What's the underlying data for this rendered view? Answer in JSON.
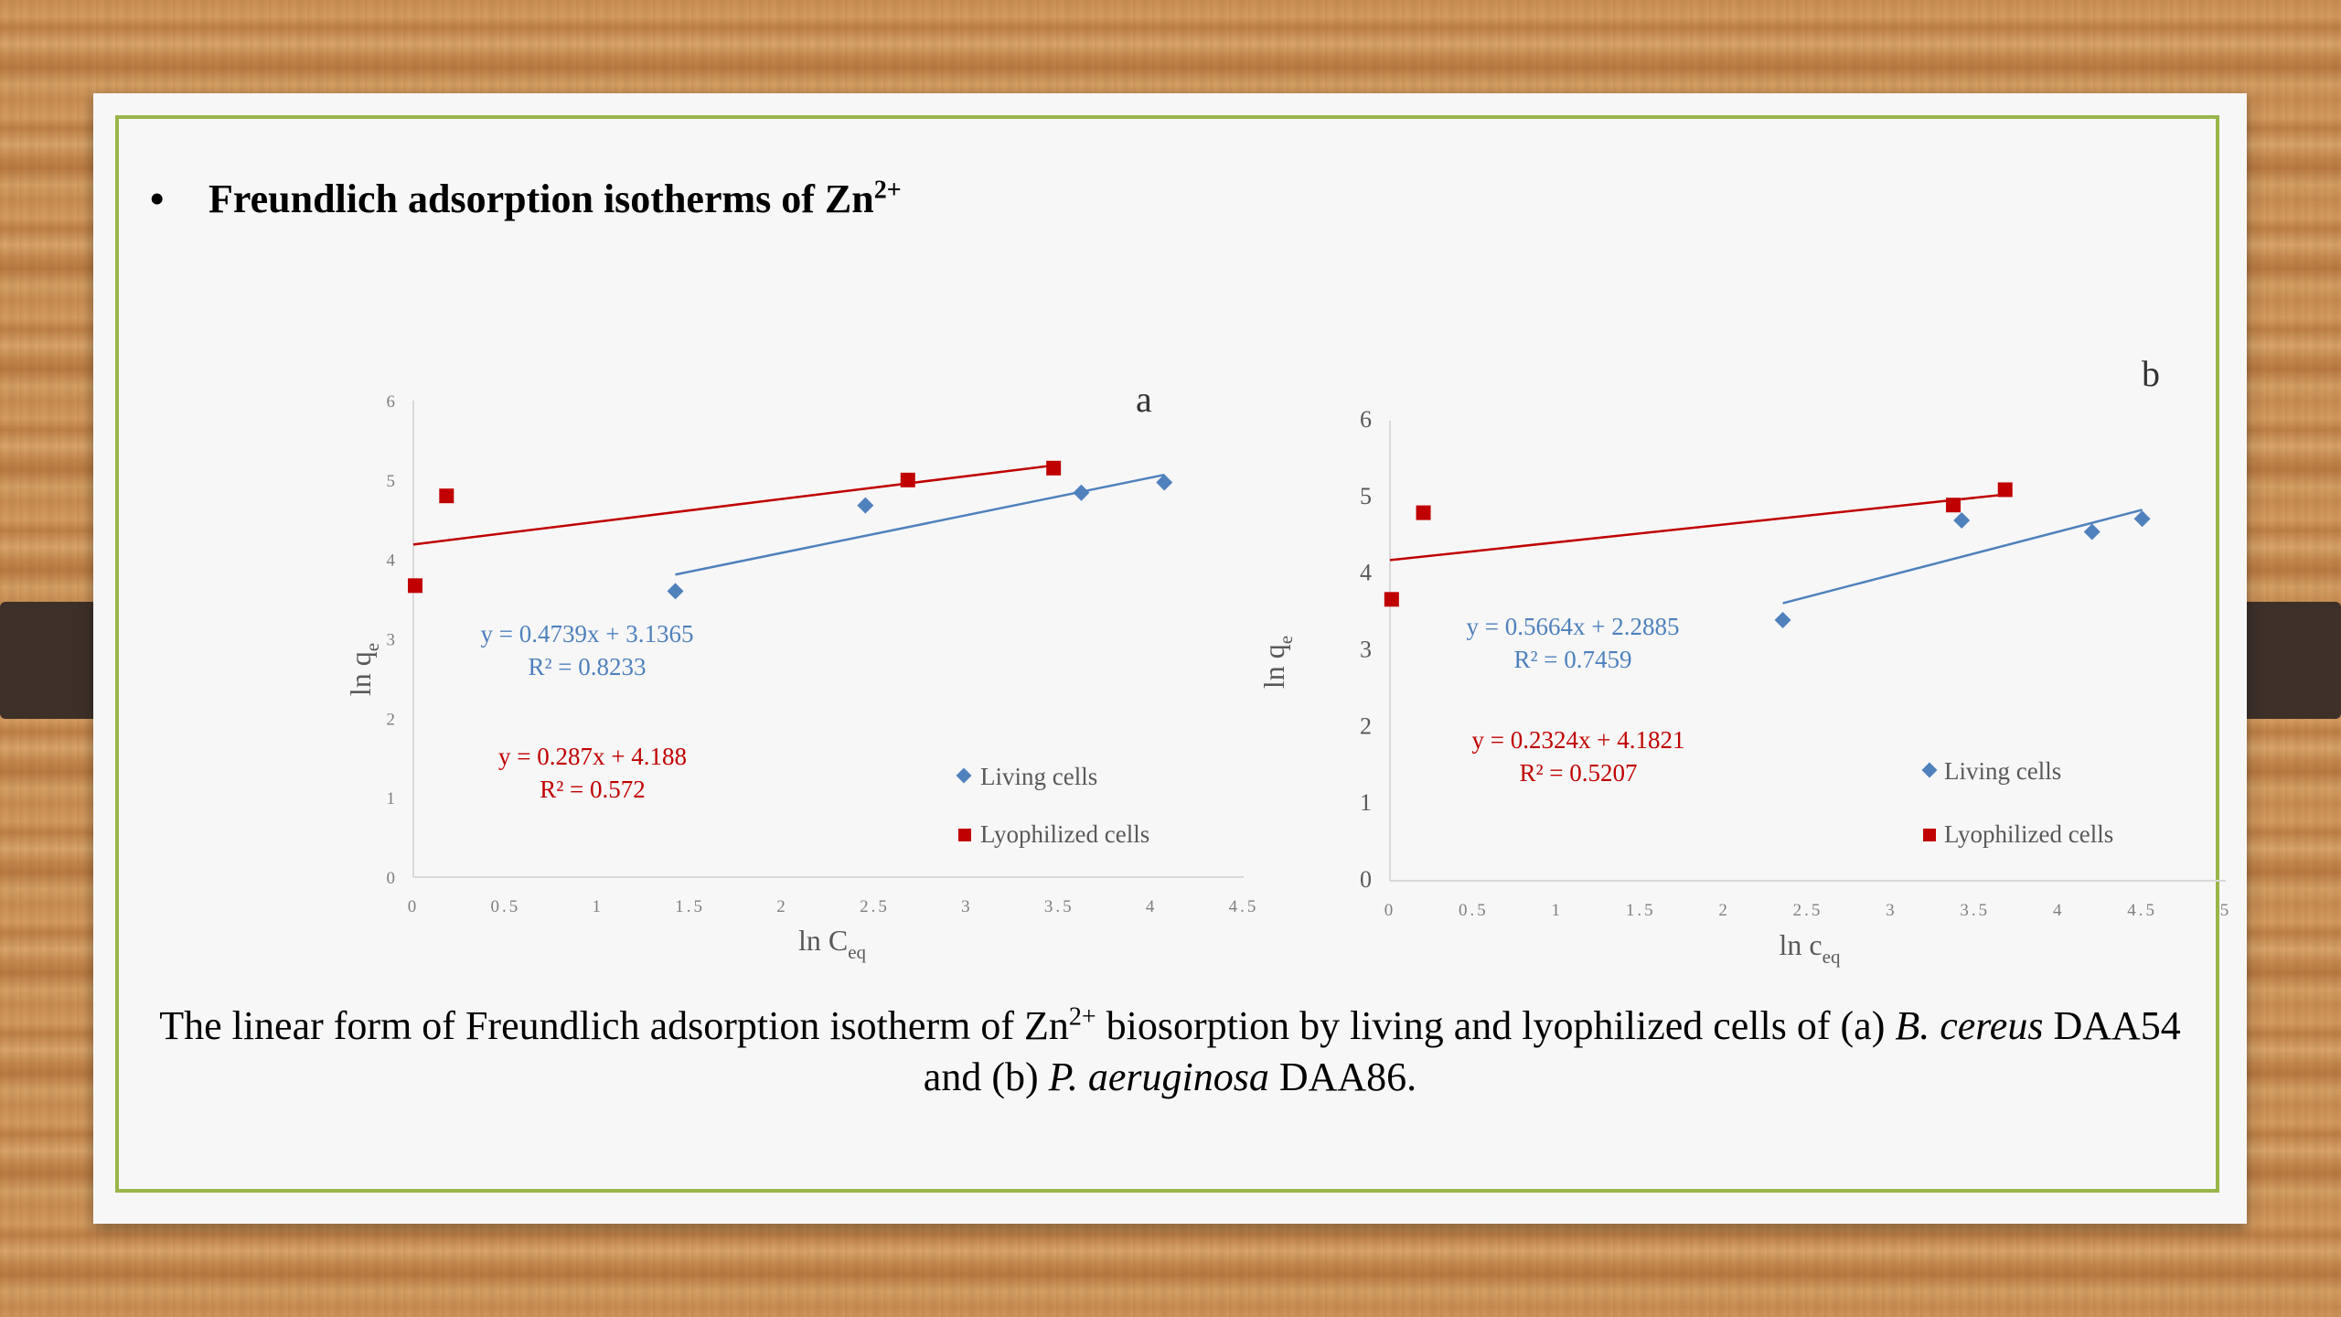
{
  "slide": {
    "heading_bullet": "•",
    "heading_text": "Freundlich adsorption isotherms of  Zn",
    "heading_sup": "2+",
    "caption": {
      "part1": "The linear form of Freundlich adsorption isotherm of Zn",
      "sup": "2+",
      "part2": " biosorption by living and lyophilized cells of (a) ",
      "species_a": "B. cereus",
      "part3": " DAA54 and (b) ",
      "species_b": "P. aeruginosa",
      "part4": " DAA86."
    }
  },
  "colors": {
    "living": "#4f81bd",
    "lyophilized": "#c00000",
    "axis": "#d9d9d9",
    "tick_text": "#7f7f7f"
  },
  "chart_data": [
    {
      "type": "scatter",
      "panel_label": "a",
      "xlabel": "ln C",
      "xlabel_sub": "eq",
      "ylabel": "ln q",
      "ylabel_sub": "e",
      "xlim": [
        0,
        4.5
      ],
      "ylim": [
        0,
        6
      ],
      "xticks": [
        0,
        0.5,
        1,
        1.5,
        2,
        2.5,
        3,
        3.5,
        4,
        4.5
      ],
      "yticks": [
        0,
        1,
        2,
        3,
        4,
        5,
        6
      ],
      "grid": false,
      "legend": "bottom-right",
      "series": [
        {
          "name": "Living cells",
          "marker": "diamond",
          "color": "#4f81bd",
          "x": [
            1.42,
            2.45,
            3.62,
            4.07
          ],
          "y": [
            3.6,
            4.68,
            4.84,
            4.97
          ],
          "trendline": {
            "slope": 0.4739,
            "intercept": 3.1365,
            "x_range": [
              1.42,
              4.07
            ]
          },
          "equation": "y = 0.4739x + 3.1365",
          "r2": "R² = 0.8233"
        },
        {
          "name": "Lyophilized cells",
          "marker": "square",
          "color": "#c00000",
          "x": [
            0.01,
            0.18,
            2.68,
            3.47
          ],
          "y": [
            3.67,
            4.8,
            5.0,
            5.15
          ],
          "trendline": {
            "slope": 0.287,
            "intercept": 4.188,
            "x_range": [
              0,
              3.47
            ]
          },
          "equation": "y = 0.287x + 4.188",
          "r2": "R² = 0.572"
        }
      ]
    },
    {
      "type": "scatter",
      "panel_label": "b",
      "xlabel": "ln c",
      "xlabel_sub": "eq",
      "ylabel": "ln q",
      "ylabel_sub": "e",
      "xlim": [
        0,
        5
      ],
      "ylim": [
        0,
        6
      ],
      "xticks": [
        0,
        0.5,
        1,
        1.5,
        2,
        2.5,
        3,
        3.5,
        4,
        4.5,
        5
      ],
      "yticks": [
        0,
        1,
        2,
        3,
        4,
        5,
        6
      ],
      "grid": false,
      "legend": "bottom-right",
      "series": [
        {
          "name": "Living cells",
          "marker": "diamond",
          "color": "#4f81bd",
          "x": [
            2.35,
            3.42,
            4.2,
            4.5
          ],
          "y": [
            3.4,
            4.7,
            4.55,
            4.72
          ],
          "trendline": {
            "slope": 0.5664,
            "intercept": 2.2885,
            "x_range": [
              2.35,
              4.5
            ]
          },
          "equation": "y = 0.5664x + 2.2885",
          "r2": "R² = 0.7459"
        },
        {
          "name": "Lyophilized cells",
          "marker": "square",
          "color": "#c00000",
          "x": [
            0.01,
            0.2,
            3.37,
            3.68
          ],
          "y": [
            3.67,
            4.8,
            4.9,
            5.1
          ],
          "trendline": {
            "slope": 0.2324,
            "intercept": 4.1821,
            "x_range": [
              0,
              3.68
            ]
          },
          "equation": "y = 0.2324x + 4.1821",
          "r2": "R² = 0.5207"
        }
      ]
    }
  ]
}
